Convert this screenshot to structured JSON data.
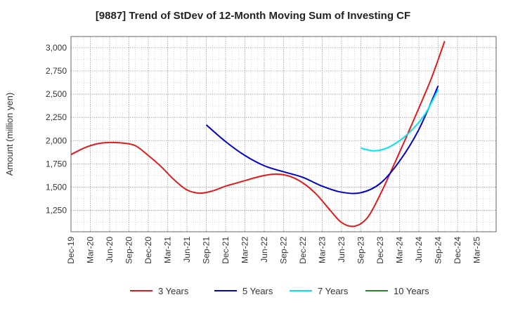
{
  "chart_data": {
    "type": "line",
    "title": "[9887]  Trend of StDev of 12-Month Moving Sum of Investing CF",
    "ylabel": "Amount (million yen)",
    "xlabel": "",
    "x_ticks": [
      "Dec-19",
      "Mar-20",
      "Jun-20",
      "Sep-20",
      "Dec-20",
      "Mar-21",
      "Jun-21",
      "Sep-21",
      "Dec-21",
      "Mar-22",
      "Jun-22",
      "Sep-22",
      "Dec-22",
      "Mar-23",
      "Jun-23",
      "Sep-23",
      "Dec-23",
      "Mar-24",
      "Jun-24",
      "Sep-24",
      "Dec-24",
      "Mar-25"
    ],
    "y_ticks": [
      1250,
      1500,
      1750,
      2000,
      2250,
      2500,
      2750,
      3000
    ],
    "y_tick_labels": [
      "1,250",
      "1,500",
      "1,750",
      "2,000",
      "2,250",
      "2,500",
      "2,750",
      "3,000"
    ],
    "ylim": [
      1020,
      3120
    ],
    "grid": true,
    "legend_position": "bottom",
    "series": [
      {
        "name": "3 Years",
        "color": "#e31a1c",
        "points": [
          [
            "Dec-19",
            1850
          ],
          [
            "Feb-20",
            1920
          ],
          [
            "Apr-20",
            1965
          ],
          [
            "Jun-20",
            1980
          ],
          [
            "Aug-20",
            1975
          ],
          [
            "Oct-20",
            1945
          ],
          [
            "Dec-20",
            1840
          ],
          [
            "Feb-21",
            1720
          ],
          [
            "Apr-21",
            1580
          ],
          [
            "Jun-21",
            1470
          ],
          [
            "Aug-21",
            1435
          ],
          [
            "Oct-21",
            1460
          ],
          [
            "Dec-21",
            1510
          ],
          [
            "Feb-22",
            1550
          ],
          [
            "Apr-22",
            1590
          ],
          [
            "Jun-22",
            1625
          ],
          [
            "Aug-22",
            1640
          ],
          [
            "Oct-22",
            1615
          ],
          [
            "Dec-22",
            1545
          ],
          [
            "Feb-23",
            1430
          ],
          [
            "Apr-23",
            1270
          ],
          [
            "Jun-23",
            1120
          ],
          [
            "Aug-23",
            1080
          ],
          [
            "Oct-23",
            1170
          ],
          [
            "Dec-23",
            1420
          ],
          [
            "Feb-24",
            1720
          ],
          [
            "Apr-24",
            2030
          ],
          [
            "Jun-24",
            2350
          ],
          [
            "Aug-24",
            2680
          ],
          [
            "Oct-24",
            3070
          ]
        ]
      },
      {
        "name": "5 Years",
        "color": "#0000cc",
        "points": [
          [
            "Sep-21",
            2170
          ],
          [
            "Dec-21",
            1990
          ],
          [
            "Mar-22",
            1840
          ],
          [
            "Jun-22",
            1730
          ],
          [
            "Sep-22",
            1665
          ],
          [
            "Dec-22",
            1605
          ],
          [
            "Mar-23",
            1510
          ],
          [
            "Jun-23",
            1445
          ],
          [
            "Sep-23",
            1440
          ],
          [
            "Dec-23",
            1540
          ],
          [
            "Mar-24",
            1780
          ],
          [
            "Jun-24",
            2120
          ],
          [
            "Sep-24",
            2590
          ]
        ]
      },
      {
        "name": "7 Years",
        "color": "#00e5ee",
        "points": [
          [
            "Sep-23",
            1920
          ],
          [
            "Nov-23",
            1890
          ],
          [
            "Jan-24",
            1920
          ],
          [
            "Mar-24",
            2000
          ],
          [
            "May-24",
            2120
          ],
          [
            "Jul-24",
            2290
          ],
          [
            "Sep-24",
            2550
          ]
        ]
      },
      {
        "name": "10 Years",
        "color": "#228b22",
        "points": []
      }
    ]
  }
}
